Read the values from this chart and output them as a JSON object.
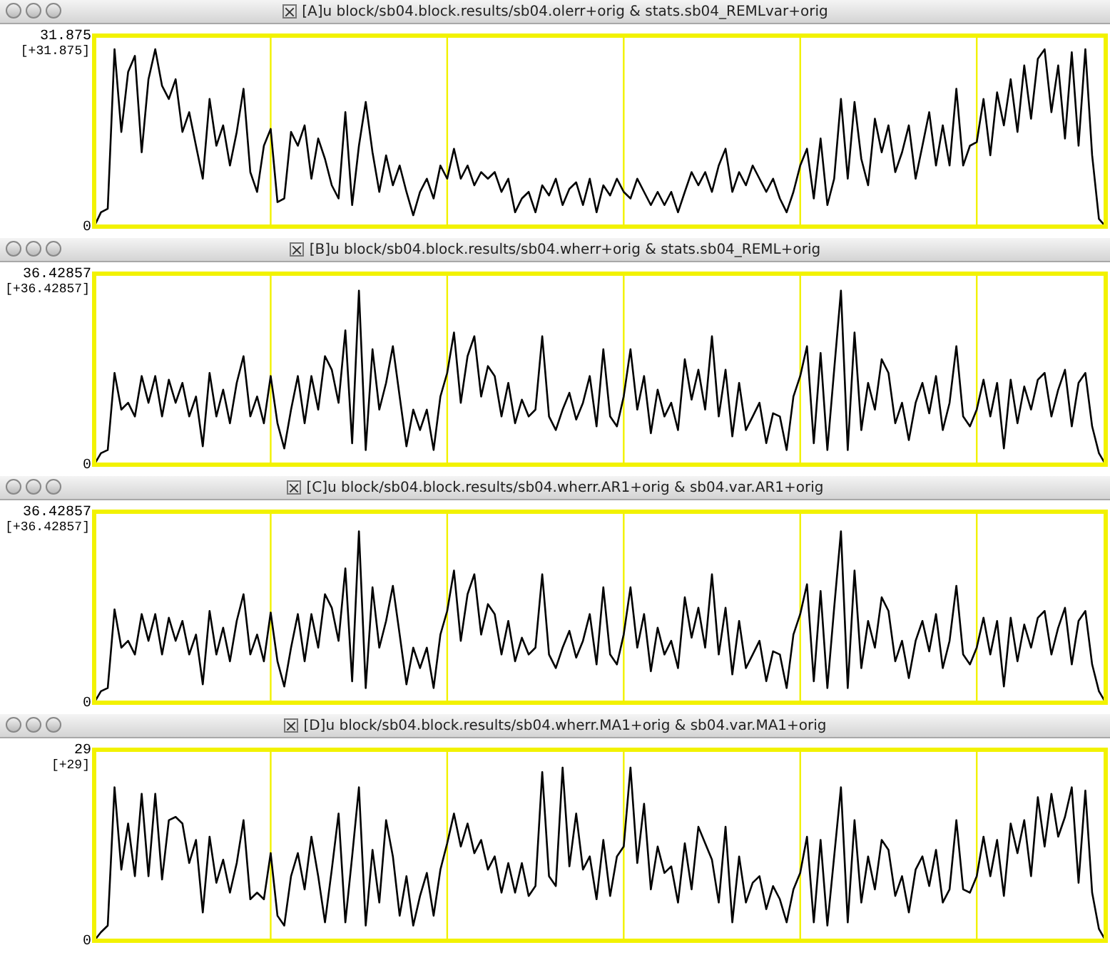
{
  "chart_data": [
    {
      "type": "line",
      "title": "[A]u block/sb04.block.results/sb04.olerr+orig & stats.sb04_REMLvar+orig",
      "categories": [
        null,
        null,
        null,
        null,
        null,
        null,
        null,
        null,
        null,
        null,
        null,
        null,
        null,
        null,
        null,
        null,
        null,
        null,
        null,
        null,
        null,
        null,
        null,
        null,
        null,
        null,
        null,
        null,
        null,
        null,
        null,
        null,
        null,
        null,
        null,
        null,
        null,
        null,
        null,
        null,
        null,
        null,
        null,
        null,
        null,
        null,
        null,
        null,
        null,
        null,
        null,
        null,
        null,
        null,
        null,
        null,
        null,
        null,
        null,
        null,
        null,
        null,
        null,
        null,
        null,
        null,
        null,
        null,
        null,
        null,
        null,
        null,
        null,
        null,
        null,
        null,
        null,
        null,
        null,
        null,
        null,
        null,
        null,
        null,
        null,
        null,
        null,
        null,
        null,
        null,
        null,
        null,
        null,
        null,
        null,
        null,
        null,
        null,
        null,
        null,
        null,
        null,
        null,
        null,
        null,
        null,
        null,
        null,
        null,
        null,
        null,
        null,
        null,
        null,
        null,
        null,
        null,
        null,
        null,
        null,
        null,
        null,
        null,
        null,
        null,
        null,
        null,
        null,
        null,
        null,
        null,
        null,
        null,
        null,
        null,
        null,
        null,
        null,
        null,
        null,
        null,
        null,
        null,
        null,
        null,
        null,
        null,
        null,
        null,
        null
      ],
      "color": "#000000",
      "values": [
        0,
        2.4,
        3,
        29.6,
        15.8,
        25.8,
        28.5,
        12.4,
        24.6,
        29.6,
        23.5,
        21.3,
        24.6,
        15.8,
        19.1,
        13.5,
        8,
        21.3,
        13.5,
        16.9,
        10.2,
        15.8,
        23,
        9.1,
        5.8,
        13.5,
        16.3,
        4.1,
        4.7,
        15.8,
        13.5,
        16.9,
        8,
        14.7,
        11.3,
        6.9,
        4.7,
        19.1,
        3.6,
        13.5,
        20.8,
        12.4,
        5.8,
        11.9,
        6.9,
        10.2,
        5.8,
        1.9,
        5.8,
        8,
        4.7,
        10.2,
        8,
        13,
        8,
        10.2,
        6.9,
        9.1,
        8,
        9.1,
        5.8,
        8,
        2.4,
        4.7,
        5.8,
        2.4,
        6.9,
        5.2,
        8,
        3.6,
        6.3,
        7.4,
        3.6,
        8,
        2.4,
        6.9,
        5.2,
        8,
        5.8,
        4.7,
        8,
        5.8,
        3.6,
        5.8,
        3.6,
        5.8,
        2.4,
        5.8,
        9.1,
        6.9,
        9.1,
        5.8,
        10.2,
        13,
        5.8,
        9.1,
        6.9,
        10.2,
        8,
        5.8,
        8,
        4.7,
        2.4,
        5.8,
        10.2,
        13,
        4.7,
        14.7,
        3.6,
        8,
        21.3,
        8,
        20.8,
        11.3,
        6.9,
        18,
        12.4,
        16.9,
        9.1,
        12.4,
        16.9,
        8,
        13.5,
        19.1,
        10.2,
        16.9,
        10.2,
        23,
        10.2,
        13.5,
        14.1,
        21.3,
        11.9,
        22.4,
        16.9,
        24.6,
        15.8,
        26.9,
        18,
        28,
        29.6,
        19.1,
        26.9,
        14.7,
        29.1,
        13.5,
        29.6,
        11.9,
        1.3,
        0
      ],
      "ylim": [
        0,
        31.875
      ],
      "yticks": [
        0,
        31.875
      ],
      "annotations": [
        "[+31.875]"
      ],
      "tick_labels": "y",
      "marker": "none",
      "line_style": "solid"
    },
    {
      "type": "line",
      "title": "[B]u block/sb04.block.results/sb04.wherr+orig & stats.sb04_REML+orig",
      "categories": [
        null,
        null,
        null,
        null,
        null,
        null,
        null,
        null,
        null,
        null,
        null,
        null,
        null,
        null,
        null,
        null,
        null,
        null,
        null,
        null,
        null,
        null,
        null,
        null,
        null,
        null,
        null,
        null,
        null,
        null,
        null,
        null,
        null,
        null,
        null,
        null,
        null,
        null,
        null,
        null,
        null,
        null,
        null,
        null,
        null,
        null,
        null,
        null,
        null,
        null,
        null,
        null,
        null,
        null,
        null,
        null,
        null,
        null,
        null,
        null,
        null,
        null,
        null,
        null,
        null,
        null,
        null,
        null,
        null,
        null,
        null,
        null,
        null,
        null,
        null,
        null,
        null,
        null,
        null,
        null,
        null,
        null,
        null,
        null,
        null,
        null,
        null,
        null,
        null,
        null,
        null,
        null,
        null,
        null,
        null,
        null,
        null,
        null,
        null,
        null,
        null,
        null,
        null,
        null,
        null,
        null,
        null,
        null,
        null,
        null,
        null,
        null,
        null,
        null,
        null,
        null,
        null,
        null,
        null,
        null,
        null,
        null,
        null,
        null,
        null,
        null,
        null,
        null,
        null,
        null,
        null,
        null,
        null,
        null,
        null,
        null,
        null,
        null,
        null,
        null,
        null,
        null,
        null,
        null,
        null,
        null,
        null,
        null,
        null,
        null
      ],
      "color": "#000000",
      "values": [
        0,
        2.2,
        2.8,
        17.5,
        10.5,
        11.8,
        9.2,
        16.9,
        11.8,
        16.9,
        9.2,
        16.2,
        11.8,
        15.6,
        9.2,
        13,
        3.5,
        17.5,
        9.2,
        14.3,
        7.9,
        15.6,
        20.7,
        9.2,
        13,
        7.9,
        16.9,
        7.9,
        3.1,
        10.5,
        16.9,
        7.9,
        16.9,
        10.5,
        20.7,
        18.1,
        11.8,
        25.6,
        4.1,
        33.2,
        2.8,
        22,
        10.5,
        15.6,
        22.6,
        13,
        3.5,
        10.5,
        6.6,
        10.5,
        2.8,
        13,
        17.5,
        25.2,
        11.8,
        20.7,
        24.5,
        13,
        18.8,
        16.9,
        9.2,
        15.6,
        7.9,
        12.4,
        9.2,
        10.5,
        24.5,
        9.2,
        6.6,
        10.5,
        13.7,
        8.6,
        11.8,
        16.9,
        7.3,
        22,
        9.2,
        7.3,
        13,
        22,
        10.5,
        16.9,
        6,
        14.3,
        9.2,
        11.8,
        6.6,
        20.1,
        12.4,
        18.1,
        10.5,
        24.5,
        9.2,
        18.1,
        5.4,
        15.6,
        6.6,
        9.2,
        11.8,
        4.1,
        9.8,
        9.2,
        2.8,
        13,
        16.9,
        22.6,
        4.1,
        21.3,
        2.8,
        18.1,
        33.2,
        2.8,
        25.2,
        6.6,
        15.6,
        10.5,
        20.1,
        17.5,
        7.9,
        11.8,
        4.7,
        11.8,
        15.6,
        9.8,
        16.9,
        6.6,
        11.8,
        22.6,
        9.2,
        7.3,
        10.5,
        16.2,
        9.2,
        15.6,
        3.1,
        16.2,
        7.9,
        14.9,
        10.5,
        16.2,
        17.5,
        9.2,
        14.3,
        18.1,
        7.3,
        15.6,
        17.5,
        7.3,
        2.2,
        0
      ],
      "ylim": [
        0,
        36.42857
      ],
      "yticks": [
        0,
        36.42857
      ],
      "annotations": [
        "[+36.42857]"
      ],
      "tick_labels": "y",
      "marker": "none",
      "line_style": "solid"
    },
    {
      "type": "line",
      "title": "[C]u block/sb04.block.results/sb04.wherr.AR1+orig & sb04.var.AR1+orig",
      "categories": [
        null,
        null,
        null,
        null,
        null,
        null,
        null,
        null,
        null,
        null,
        null,
        null,
        null,
        null,
        null,
        null,
        null,
        null,
        null,
        null,
        null,
        null,
        null,
        null,
        null,
        null,
        null,
        null,
        null,
        null,
        null,
        null,
        null,
        null,
        null,
        null,
        null,
        null,
        null,
        null,
        null,
        null,
        null,
        null,
        null,
        null,
        null,
        null,
        null,
        null,
        null,
        null,
        null,
        null,
        null,
        null,
        null,
        null,
        null,
        null,
        null,
        null,
        null,
        null,
        null,
        null,
        null,
        null,
        null,
        null,
        null,
        null,
        null,
        null,
        null,
        null,
        null,
        null,
        null,
        null,
        null,
        null,
        null,
        null,
        null,
        null,
        null,
        null,
        null,
        null,
        null,
        null,
        null,
        null,
        null,
        null,
        null,
        null,
        null,
        null,
        null,
        null,
        null,
        null,
        null,
        null,
        null,
        null,
        null,
        null,
        null,
        null,
        null,
        null,
        null,
        null,
        null,
        null,
        null,
        null,
        null,
        null,
        null,
        null,
        null,
        null,
        null,
        null,
        null,
        null,
        null,
        null,
        null,
        null,
        null,
        null,
        null,
        null,
        null,
        null,
        null,
        null,
        null,
        null,
        null,
        null,
        null,
        null,
        null,
        null
      ],
      "color": "#000000",
      "values": [
        0,
        2.2,
        2.8,
        17.8,
        10.5,
        11.8,
        9.2,
        16.9,
        11.8,
        16.9,
        9.2,
        16.2,
        11.8,
        15.6,
        9.2,
        13,
        3.5,
        17.5,
        9.2,
        14.3,
        7.9,
        15.6,
        20.7,
        9.2,
        13,
        7.9,
        17.2,
        7.9,
        3.1,
        10.5,
        16.9,
        7.9,
        16.9,
        10.5,
        20.7,
        18.1,
        11.8,
        25.6,
        4.1,
        32.7,
        2.8,
        22,
        10.5,
        15.6,
        22.3,
        13,
        3.5,
        10.5,
        6.6,
        10.5,
        2.8,
        13,
        17.5,
        25.2,
        11.8,
        20.7,
        24.5,
        13,
        18.8,
        16.9,
        9.2,
        15.6,
        7.9,
        12.4,
        9.2,
        10.5,
        24.5,
        9.2,
        6.6,
        10.5,
        13.7,
        8.6,
        11.8,
        16.9,
        7.3,
        22,
        9.2,
        7.3,
        13,
        22,
        10.5,
        16.9,
        6,
        14.3,
        9.2,
        11.8,
        6.6,
        20.1,
        12.4,
        18.1,
        10.5,
        24.5,
        9.2,
        18.1,
        5.4,
        15.6,
        6.6,
        9.2,
        11.8,
        4.1,
        9.8,
        9.2,
        2.8,
        13,
        16.9,
        22.6,
        4.1,
        21.3,
        2.8,
        18.1,
        32.7,
        2.8,
        25.2,
        6.6,
        15.6,
        10.5,
        20.1,
        17.5,
        7.9,
        11.8,
        4.7,
        11.8,
        15.6,
        9.8,
        16.9,
        6.6,
        11.8,
        22.3,
        9.2,
        7.3,
        10.5,
        16.2,
        9.2,
        15.6,
        3.1,
        16.2,
        7.9,
        14.9,
        10.5,
        16.2,
        17.5,
        9.2,
        14.3,
        18.1,
        7.3,
        15.6,
        17.5,
        7.3,
        2.2,
        0
      ],
      "ylim": [
        0,
        36.42857
      ],
      "yticks": [
        0,
        36.42857
      ],
      "annotations": [
        "[+36.42857]"
      ],
      "tick_labels": "y",
      "marker": "none",
      "line_style": "solid"
    },
    {
      "type": "line",
      "title": "[D]u block/sb04.block.results/sb04.wherr.MA1+orig & sb04.var.MA1+orig",
      "categories": [
        null,
        null,
        null,
        null,
        null,
        null,
        null,
        null,
        null,
        null,
        null,
        null,
        null,
        null,
        null,
        null,
        null,
        null,
        null,
        null,
        null,
        null,
        null,
        null,
        null,
        null,
        null,
        null,
        null,
        null,
        null,
        null,
        null,
        null,
        null,
        null,
        null,
        null,
        null,
        null,
        null,
        null,
        null,
        null,
        null,
        null,
        null,
        null,
        null,
        null,
        null,
        null,
        null,
        null,
        null,
        null,
        null,
        null,
        null,
        null,
        null,
        null,
        null,
        null,
        null,
        null,
        null,
        null,
        null,
        null,
        null,
        null,
        null,
        null,
        null,
        null,
        null,
        null,
        null,
        null,
        null,
        null,
        null,
        null,
        null,
        null,
        null,
        null,
        null,
        null,
        null,
        null,
        null,
        null,
        null,
        null,
        null,
        null,
        null,
        null,
        null,
        null,
        null,
        null,
        null,
        null,
        null,
        null,
        null,
        null,
        null,
        null,
        null,
        null,
        null,
        null,
        null,
        null,
        null,
        null,
        null,
        null,
        null,
        null,
        null,
        null,
        null,
        null,
        null,
        null,
        null,
        null,
        null,
        null,
        null,
        null,
        null,
        null,
        null,
        null,
        null,
        null,
        null,
        null,
        null,
        null,
        null,
        null,
        null,
        null
      ],
      "color": "#000000",
      "values": [
        0,
        1.3,
        2.3,
        23.3,
        10.8,
        17.8,
        9.8,
        22.3,
        9.8,
        22.3,
        9.3,
        18.3,
        18.8,
        17.8,
        11.8,
        15.3,
        4.3,
        15.8,
        8.8,
        12.3,
        7.3,
        11.8,
        18.3,
        6.3,
        7.3,
        6.3,
        13.3,
        3.8,
        2.3,
        9.8,
        13.3,
        7.8,
        15.8,
        9.8,
        2.8,
        10.8,
        19.3,
        2.8,
        12.8,
        23.3,
        2.3,
        13.8,
        5.8,
        18.3,
        12.8,
        3.8,
        9.8,
        2.3,
        6.8,
        10.3,
        3.8,
        10.8,
        14.8,
        19.3,
        14.3,
        17.8,
        13.3,
        15.3,
        10.8,
        12.8,
        7.3,
        11.8,
        7.3,
        11.8,
        6.8,
        8.3,
        25.6,
        9.8,
        8.3,
        26.3,
        11.3,
        19.3,
        10.8,
        12.8,
        6.3,
        15.3,
        6.8,
        12.8,
        14.3,
        26.3,
        11.8,
        20.8,
        7.8,
        14.3,
        10.3,
        11.3,
        5.8,
        14.8,
        7.8,
        17.3,
        14.8,
        12.3,
        5.8,
        17.3,
        2.8,
        12.8,
        5.8,
        8.8,
        9.8,
        4.8,
        8.3,
        6.3,
        2.8,
        7.8,
        10.3,
        15.8,
        2.8,
        15.3,
        2.3,
        12.8,
        23.3,
        2.8,
        18.3,
        5.8,
        12.8,
        7.8,
        15.3,
        13.8,
        6.8,
        9.8,
        4.3,
        10.8,
        12.8,
        8.3,
        13.8,
        5.8,
        7.8,
        18.3,
        7.8,
        7.3,
        9.8,
        15.8,
        9.8,
        15.3,
        6.8,
        17.8,
        13.3,
        18.3,
        9.8,
        21.8,
        14.3,
        22.3,
        15.8,
        18.8,
        23.3,
        8.8,
        22.8,
        7.3,
        1.8,
        0
      ],
      "ylim": [
        0,
        29
      ],
      "yticks": [
        0,
        29
      ],
      "annotations": [
        "[+29]"
      ],
      "tick_labels": "y",
      "marker": "none",
      "line_style": "solid"
    }
  ]
}
